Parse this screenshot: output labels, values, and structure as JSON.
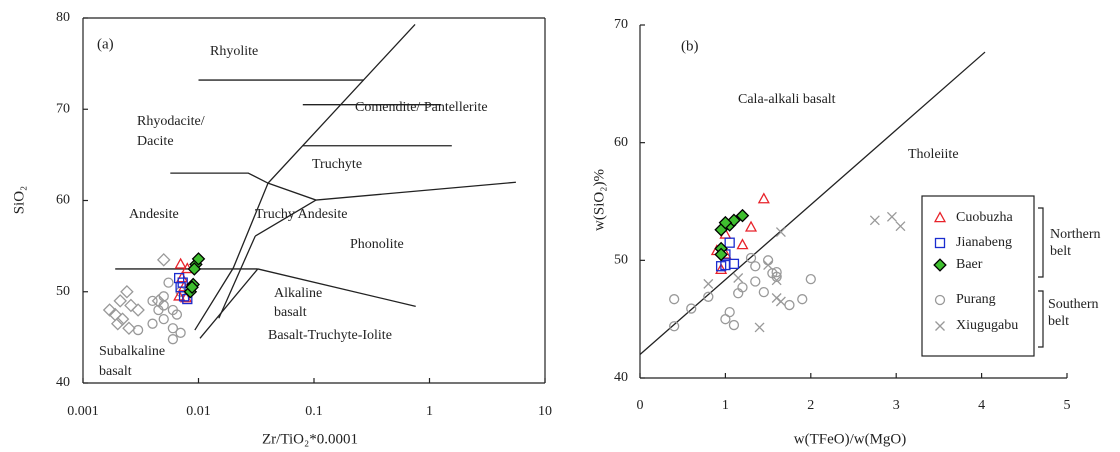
{
  "chart_data": [
    {
      "type": "scatter",
      "panel_label": "(a)",
      "xlabel": "Zr/TiO₂*0.0001",
      "ylabel": "SiO₂",
      "xscale": "log",
      "xlim": [
        0.001,
        10
      ],
      "ylim": [
        40,
        80
      ],
      "xticks": [
        0.001,
        0.01,
        0.1,
        1,
        10
      ],
      "yticks": [
        40,
        50,
        60,
        70,
        80
      ],
      "frame": "box",
      "annotations": [
        "Rhyolite",
        [
          "Rhyodacite/",
          "Dacite"
        ],
        "Comendite/ Pantellerite",
        "Truchyte",
        "Andesite",
        "Truchy Andesite",
        "Phonolite",
        [
          "Alkaline",
          "basalt"
        ],
        "Basalt-Truchyte-Iolite",
        [
          "Subalkaline",
          "basalt"
        ]
      ],
      "boundaries": [
        {
          "x": [
            0.01,
            0.27
          ],
          "y": [
            73.2,
            73.2
          ]
        },
        {
          "x": [
            0.75,
            0.04,
            0.02,
            0.0093
          ],
          "y": [
            79.3,
            61.9,
            52.6,
            45.8
          ]
        },
        {
          "x": [
            0.08,
            1.26
          ],
          "y": [
            70.5,
            70.5
          ]
        },
        {
          "x": [
            0.08,
            1.56
          ],
          "y": [
            66,
            66
          ]
        },
        {
          "x": [
            0.0057,
            0.027,
            0.04,
            0.104,
            5.6
          ],
          "y": [
            63,
            63,
            61.9,
            60.05,
            62
          ]
        },
        {
          "x": [
            0.031,
            0.104
          ],
          "y": [
            56.1,
            60.05
          ]
        },
        {
          "x": [
            0.0019,
            0.0326
          ],
          "y": [
            52.5,
            52.5
          ]
        },
        {
          "x": [
            0.0326,
            0.76
          ],
          "y": [
            52.5,
            48.4
          ]
        },
        {
          "x": [
            0.0103,
            0.0326
          ],
          "y": [
            44.9,
            52.5
          ]
        },
        {
          "x": [
            0.015,
            0.031
          ],
          "y": [
            47.1,
            56.1
          ]
        }
      ],
      "series": [
        {
          "marker": "circle",
          "color": "#999999",
          "fill": "none",
          "x": [
            0.004,
            0.005,
            0.005,
            0.006,
            0.006,
            0.007,
            0.006,
            0.005,
            0.007,
            0.004,
            0.003,
            0.0065,
            0.0055,
            0.0045
          ],
          "y": [
            49,
            48.5,
            47,
            48,
            46,
            45.5,
            44.8,
            49.5,
            50,
            46.5,
            45.8,
            47.5,
            51,
            48
          ]
        },
        {
          "marker": "diamond",
          "color": "#999999",
          "fill": "none",
          "x": [
            0.0017,
            0.0019,
            0.002,
            0.0022,
            0.0024,
            0.0026,
            0.0025,
            0.0021,
            0.005,
            0.0045,
            0.003
          ],
          "y": [
            48,
            47.5,
            46.5,
            47,
            50,
            48.5,
            46,
            49,
            53.5,
            49,
            48
          ]
        },
        {
          "marker": "triangle",
          "color": "#e8222a",
          "fill": "none",
          "x": [
            0.007,
            0.0072,
            0.0075,
            0.0068,
            0.008,
            0.0078
          ],
          "y": [
            53,
            51.5,
            50.5,
            49.5,
            52.5,
            49.3
          ]
        },
        {
          "marker": "square",
          "color": "#1a2ccf",
          "fill": "none",
          "x": [
            0.0068,
            0.007,
            0.0073,
            0.0075,
            0.008
          ],
          "y": [
            51.5,
            50.5,
            51,
            49.5,
            49.2
          ]
        },
        {
          "marker": "diamond",
          "color": "#000000",
          "fill": "#3fbf2f",
          "x": [
            0.0085,
            0.009,
            0.0095,
            0.01,
            0.0092,
            0.0088
          ],
          "y": [
            50,
            50.8,
            53,
            53.6,
            52.5,
            50.5
          ]
        }
      ]
    },
    {
      "type": "scatter",
      "panel_label": "(b)",
      "xlabel": "w(TFeO)/w(MgO)",
      "ylabel": "w(SiO₂)%",
      "xscale": "linear",
      "xlim": [
        0,
        5
      ],
      "ylim": [
        40,
        70
      ],
      "xticks": [
        0,
        1,
        2,
        3,
        4,
        5
      ],
      "yticks": [
        40,
        50,
        60,
        70
      ],
      "frame": "axes",
      "annotations": [
        "Cala-alkali basalt",
        "Tholeiite"
      ],
      "boundaries": [
        {
          "x": [
            0,
            4.04
          ],
          "y": [
            42,
            67.7
          ]
        }
      ],
      "legend": true,
      "legend_groups": [
        [
          "Northern",
          "belt"
        ],
        [
          "Southern",
          "belt"
        ]
      ],
      "series": [
        {
          "name": "Cuobuzha",
          "marker": "triangle",
          "color": "#e8222a",
          "fill": "none",
          "x": [
            1.45,
            1.2,
            0.95,
            1.0,
            0.9,
            1.3,
            1.0
          ],
          "y": [
            55.2,
            51.3,
            49.2,
            50.5,
            50.8,
            52.8,
            52.2
          ]
        },
        {
          "name": "Jianabeng",
          "marker": "square",
          "color": "#1a2ccf",
          "fill": "none",
          "x": [
            0.95,
            1.1,
            1.0,
            1.05,
            1.0
          ],
          "y": [
            49.5,
            49.7,
            50.5,
            51.5,
            49.6
          ]
        },
        {
          "name": "Baer",
          "marker": "diamond",
          "color": "#000000",
          "fill": "#3fbf2f",
          "x": [
            0.95,
            1.05,
            1.1,
            1.2,
            0.95,
            0.95,
            1.0
          ],
          "y": [
            52.6,
            53.0,
            53.4,
            53.8,
            51.0,
            50.5,
            53.2
          ]
        },
        {
          "name": "Purang",
          "marker": "circle",
          "color": "#999999",
          "fill": "none",
          "x": [
            0.4,
            0.4,
            0.6,
            0.8,
            1.0,
            1.05,
            1.1,
            1.15,
            1.2,
            1.3,
            1.35,
            1.35,
            1.45,
            1.55,
            1.6,
            1.75,
            1.9,
            2.0,
            1.6,
            1.5
          ],
          "y": [
            46.7,
            44.4,
            45.9,
            46.9,
            45.0,
            45.6,
            44.5,
            47.2,
            47.7,
            50.2,
            49.5,
            48.2,
            47.3,
            48.9,
            48.6,
            46.2,
            46.7,
            48.4,
            49.0,
            50.0
          ]
        },
        {
          "name": "Xiugugabu",
          "marker": "x",
          "color": "#999999",
          "fill": "none",
          "x": [
            0.8,
            1.15,
            1.4,
            1.5,
            1.6,
            1.65,
            1.6,
            2.75,
            2.95,
            3.05,
            1.65
          ],
          "y": [
            48.0,
            48.5,
            44.3,
            49.6,
            46.8,
            52.4,
            48.3,
            53.4,
            53.7,
            52.9,
            46.5
          ]
        }
      ]
    }
  ]
}
